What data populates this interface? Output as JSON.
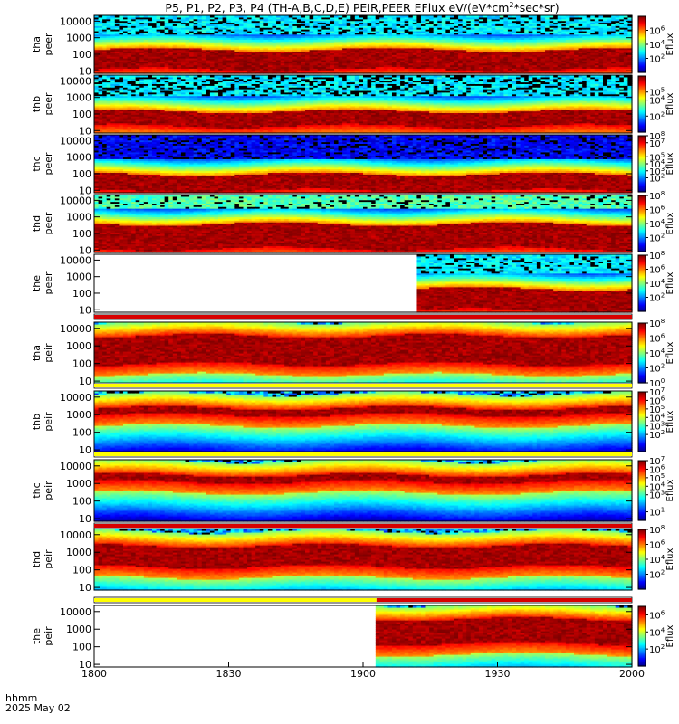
{
  "title": "P5, P1, P2, P3, P4 (TH-A,B,C,D,E) PEIR,PEER EFlux eV/(eV*cm",
  "title_sup": "2",
  "title_end": "*sec*sr)",
  "footer": {
    "line1": "hhmm",
    "line2": "2025 May 02"
  },
  "colors": {
    "background": "#ffffff",
    "axis": "#000000",
    "flag_yellow": "#ffff00",
    "flag_red": "#d80000",
    "fill_gap": "#ffffff"
  },
  "chart_data": {
    "type": "heatmap",
    "x_axis": {
      "ticks": [
        "1800",
        "1830",
        "1900",
        "1930",
        "2000"
      ],
      "range": [
        "18:00",
        "20:00"
      ]
    },
    "y_scale": "log",
    "y_ticks": [
      "10",
      "100",
      "1000",
      "10000"
    ],
    "colorbar_label": "Eflux",
    "panels": [
      {
        "label1": "tha",
        "label2": "peer",
        "species": "electron",
        "cmax": 8,
        "cbar_ticks": [
          [
            "10",
            "2"
          ],
          [
            "10",
            "4"
          ],
          [
            "10",
            "6"
          ]
        ],
        "data_start_frac": 0,
        "hot_band": [
          1.1,
          2.3
        ],
        "noise_top": 0.68,
        "noise_color": "cyan"
      },
      {
        "label1": "thb",
        "label2": "peer",
        "species": "electron",
        "cmax": 7,
        "cbar_ticks": [
          [
            "10",
            "2"
          ],
          [
            "10",
            "4"
          ],
          [
            "10",
            "5"
          ]
        ],
        "data_start_frac": 0,
        "hot_band": [
          1.3,
          2.2
        ],
        "noise_top": 0.95,
        "noise_color": "cyan"
      },
      {
        "label1": "thc",
        "label2": "peer",
        "species": "electron",
        "cmax": 8,
        "cbar_ticks": [
          [
            "10",
            "2"
          ],
          [
            "10",
            "3"
          ],
          [
            "10",
            "4"
          ],
          [
            "10",
            "5"
          ],
          [
            "10",
            "7"
          ],
          [
            "10",
            "8"
          ]
        ],
        "data_start_frac": 0,
        "hot_band": [
          1.0,
          2.0
        ],
        "noise_top": 0.55,
        "noise_color": "blue"
      },
      {
        "label1": "thd",
        "label2": "peer",
        "species": "electron",
        "cmax": 8,
        "cbar_ticks": [
          [
            "10",
            "2"
          ],
          [
            "10",
            "4"
          ],
          [
            "10",
            "6"
          ],
          [
            "10",
            "8"
          ]
        ],
        "data_start_frac": 0,
        "hot_band": [
          1.1,
          2.6
        ],
        "noise_top": 0.4,
        "noise_color": "green"
      },
      {
        "label1": "the",
        "label2": "peer",
        "species": "electron",
        "cmax": 8,
        "cbar_ticks": [
          [
            "10",
            "2"
          ],
          [
            "10",
            "4"
          ],
          [
            "10",
            "6"
          ],
          [
            "10",
            "8"
          ]
        ],
        "data_start_frac": 0.6,
        "hot_band": [
          1.0,
          2.3
        ],
        "noise_top": 0.55,
        "noise_color": "cyan"
      },
      {
        "label1": "tha",
        "label2": "peir",
        "species": "ion",
        "cmax": 8,
        "cbar_ticks": [
          [
            "10",
            "0"
          ],
          [
            "10",
            "2"
          ],
          [
            "10",
            "4"
          ],
          [
            "10",
            "6"
          ],
          [
            "10",
            "8"
          ]
        ],
        "data_start_frac": 0,
        "hot_band": [
          2.0,
          3.6
        ],
        "flag": "red"
      },
      {
        "label1": "thb",
        "label2": "peir",
        "species": "ion",
        "cmax": 7,
        "cbar_ticks": [
          [
            "10",
            "2"
          ],
          [
            "10",
            "3"
          ],
          [
            "10",
            "4"
          ],
          [
            "10",
            "5"
          ],
          [
            "10",
            "6"
          ],
          [
            "10",
            "7"
          ]
        ],
        "data_start_frac": 0,
        "hot_band": [
          3.0,
          3.4
        ],
        "flag": "yellow"
      },
      {
        "label1": "thc",
        "label2": "peir",
        "species": "ion",
        "cmax": 7,
        "cbar_ticks": [
          [
            "10",
            "1"
          ],
          [
            "10",
            "3"
          ],
          [
            "10",
            "4"
          ],
          [
            "10",
            "5"
          ],
          [
            "10",
            "6"
          ],
          [
            "10",
            "7"
          ]
        ],
        "data_start_frac": 0,
        "hot_band": [
          3.1,
          3.5
        ],
        "flag": "yellow"
      },
      {
        "label1": "thd",
        "label2": "peir",
        "species": "ion",
        "cmax": 8,
        "cbar_ticks": [
          [
            "10",
            "2"
          ],
          [
            "10",
            "4"
          ],
          [
            "10",
            "6"
          ],
          [
            "10",
            "8"
          ]
        ],
        "data_start_frac": 0,
        "hot_band": [
          2.2,
          3.4
        ],
        "flag": "red"
      },
      {
        "label1": "the",
        "label2": "peir",
        "species": "ion",
        "cmax": 7,
        "cbar_ticks": [
          [
            "10",
            "2"
          ],
          [
            "10",
            "4"
          ],
          [
            "10",
            "6"
          ]
        ],
        "data_start_frac": 0.525,
        "hot_band": [
          2.2,
          3.6
        ],
        "flag": "yellow_red",
        "flag_split_frac": 0.525
      }
    ]
  }
}
